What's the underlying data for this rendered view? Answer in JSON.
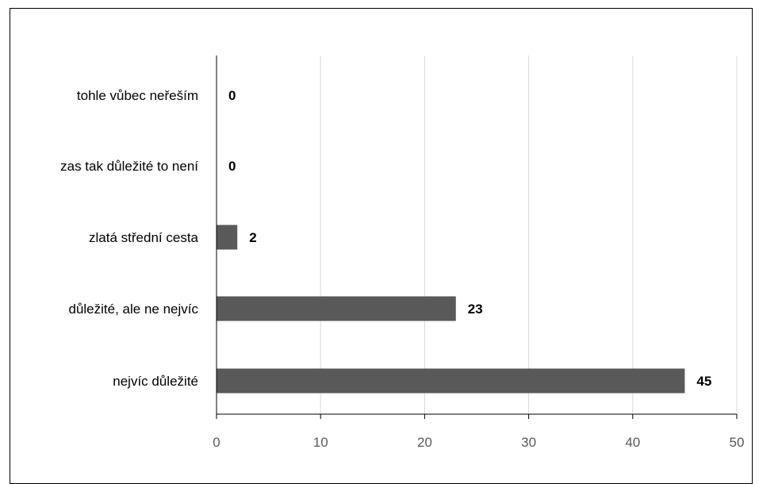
{
  "chart_data": {
    "type": "bar",
    "orientation": "horizontal",
    "categories": [
      "tohle vůbec neřeším",
      "zas tak důležité to není",
      "zlatá střední cesta",
      "důležité, ale ne nejvíc",
      "nejvíc důležité"
    ],
    "values": [
      0,
      0,
      2,
      23,
      45
    ],
    "xlim": [
      0,
      50
    ],
    "xticks": [
      0,
      10,
      20,
      30,
      40,
      50
    ],
    "grid": true,
    "bar_color": "#595959",
    "data_labels": true
  }
}
